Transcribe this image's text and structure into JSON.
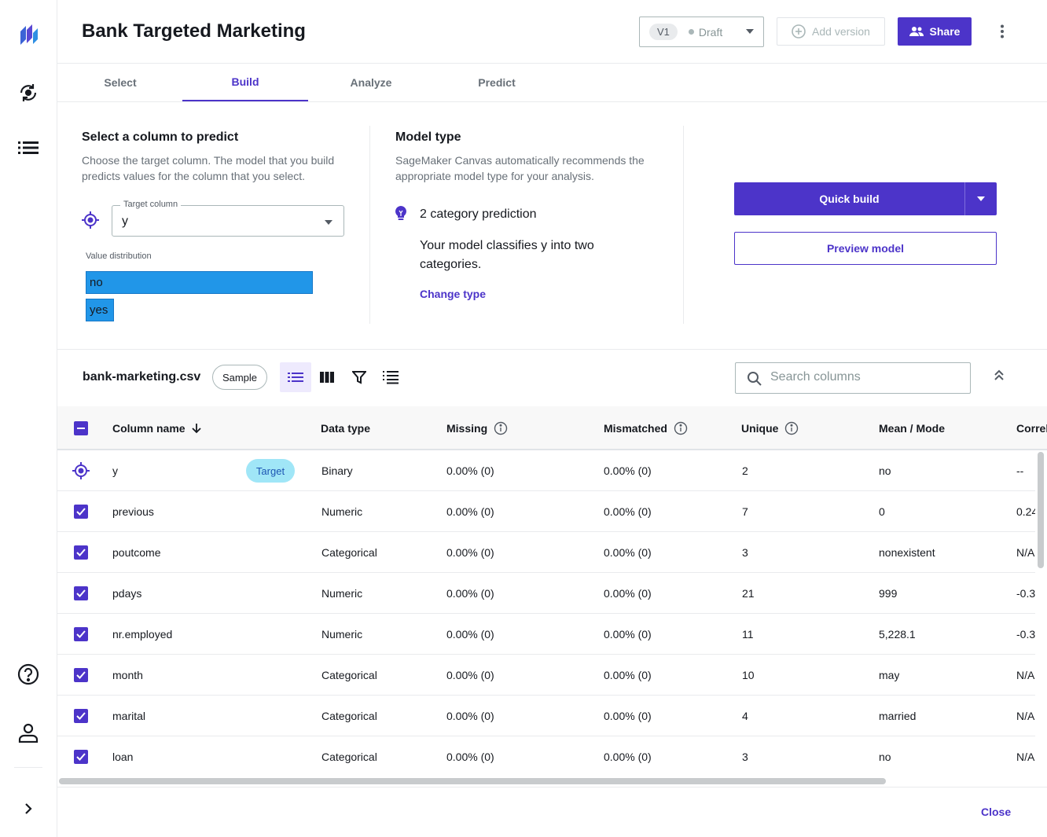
{
  "app": {
    "title": "Bank Targeted Marketing"
  },
  "rail": {
    "icons": [
      "logo-icon",
      "models-icon",
      "datasets-icon",
      "help-icon",
      "user-icon",
      "expand-icon"
    ]
  },
  "header": {
    "version": "V1",
    "version_status": "Draft",
    "add_version_label": "Add version",
    "share_label": "Share"
  },
  "tabs": [
    {
      "label": "Select"
    },
    {
      "label": "Build",
      "active": true
    },
    {
      "label": "Analyze"
    },
    {
      "label": "Predict"
    }
  ],
  "target": {
    "heading": "Select a column to predict",
    "description": "Choose the target column. The model that you build predicts values for the column that you select.",
    "field_label": "Target column",
    "value": "y",
    "distribution_label": "Value distribution",
    "distribution": [
      {
        "label": "no",
        "fraction": 1.0
      },
      {
        "label": "yes",
        "fraction": 0.12
      }
    ]
  },
  "model_type": {
    "heading": "Model type",
    "description": "SageMaker Canvas automatically recommends the appropriate model type for your analysis.",
    "type_label": "2 category prediction",
    "type_description": "Your model classifies y into two categories.",
    "change_label": "Change type"
  },
  "actions": {
    "quick_build": "Quick build",
    "preview_model": "Preview model"
  },
  "dataset": {
    "name": "bank-marketing.csv",
    "sample_label": "Sample",
    "search_placeholder": "Search columns",
    "columns": [
      "Column name",
      "Data type",
      "Missing",
      "Mismatched",
      "Unique",
      "Mean / Mode",
      "Correl"
    ],
    "target_badge": "Target",
    "rows": [
      {
        "name": "y",
        "type": "Binary",
        "missing": "0.00% (0)",
        "mismatched": "0.00% (0)",
        "unique": "2",
        "mean": "no",
        "corr": "--"
      },
      {
        "name": "previous",
        "type": "Numeric",
        "missing": "0.00% (0)",
        "mismatched": "0.00% (0)",
        "unique": "7",
        "mean": "0",
        "corr": "0.24"
      },
      {
        "name": "poutcome",
        "type": "Categorical",
        "missing": "0.00% (0)",
        "mismatched": "0.00% (0)",
        "unique": "3",
        "mean": "nonexistent",
        "corr": "N/A"
      },
      {
        "name": "pdays",
        "type": "Numeric",
        "missing": "0.00% (0)",
        "mismatched": "0.00% (0)",
        "unique": "21",
        "mean": "999",
        "corr": "-0.3"
      },
      {
        "name": "nr.employed",
        "type": "Numeric",
        "missing": "0.00% (0)",
        "mismatched": "0.00% (0)",
        "unique": "11",
        "mean": "5,228.1",
        "corr": "-0.3"
      },
      {
        "name": "month",
        "type": "Categorical",
        "missing": "0.00% (0)",
        "mismatched": "0.00% (0)",
        "unique": "10",
        "mean": "may",
        "corr": "N/A"
      },
      {
        "name": "marital",
        "type": "Categorical",
        "missing": "0.00% (0)",
        "mismatched": "0.00% (0)",
        "unique": "4",
        "mean": "married",
        "corr": "N/A"
      },
      {
        "name": "loan",
        "type": "Categorical",
        "missing": "0.00% (0)",
        "mismatched": "0.00% (0)",
        "unique": "3",
        "mean": "no",
        "corr": "N/A"
      }
    ]
  },
  "footer": {
    "close_label": "Close"
  },
  "colors": {
    "accent": "#4c34c9",
    "bar": "#2196e8",
    "target_badge": "#a0e6f7"
  }
}
